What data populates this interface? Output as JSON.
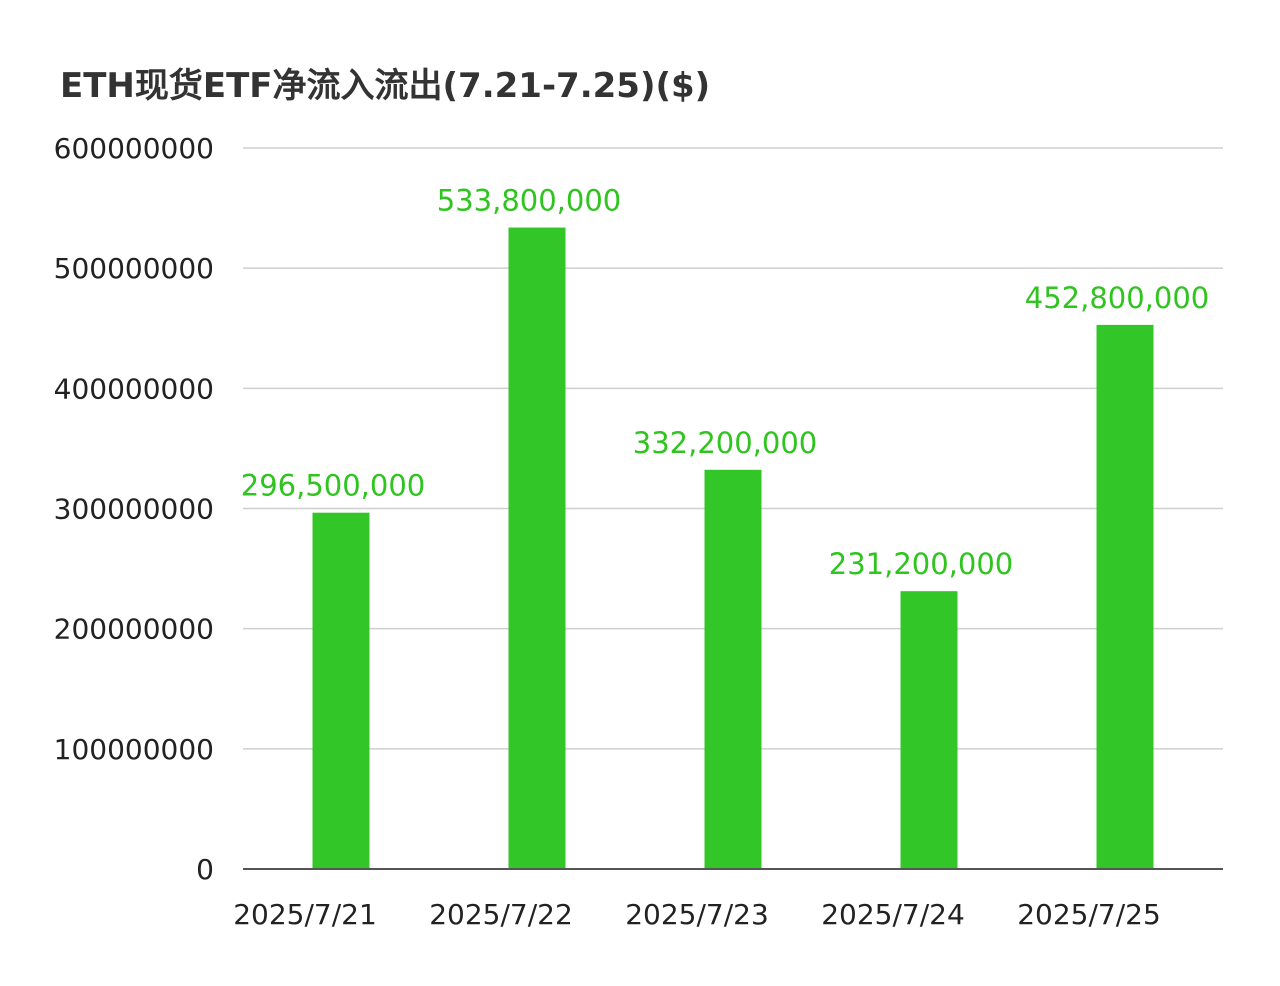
{
  "title": "ETH现货ETF净流入流出(7.21-7.25)($)",
  "colors": {
    "bar": "#33c628",
    "label": "#2fc41f",
    "grid": "#cfcfcf",
    "axis": "#555555",
    "text": "#222222"
  },
  "chart_data": {
    "type": "bar",
    "title": "ETH现货ETF净流入流出(7.21-7.25)($)",
    "categories": [
      "2025/7/21",
      "2025/7/22",
      "2025/7/23",
      "2025/7/24",
      "2025/7/25"
    ],
    "values": [
      296500000,
      533800000,
      332200000,
      231200000,
      452800000
    ],
    "data_labels": [
      "296,500,000",
      "533,800,000",
      "332,200,000",
      "231,200,000",
      "452,800,000"
    ],
    "y_ticks": [
      0,
      100000000,
      200000000,
      300000000,
      400000000,
      500000000,
      600000000
    ],
    "y_tick_labels": [
      "0",
      "100000000",
      "200000000",
      "300000000",
      "400000000",
      "500000000",
      "600000000"
    ],
    "ylim": [
      0,
      600000000
    ],
    "xlabel": "",
    "ylabel": "",
    "grid": true,
    "legend": "none"
  }
}
